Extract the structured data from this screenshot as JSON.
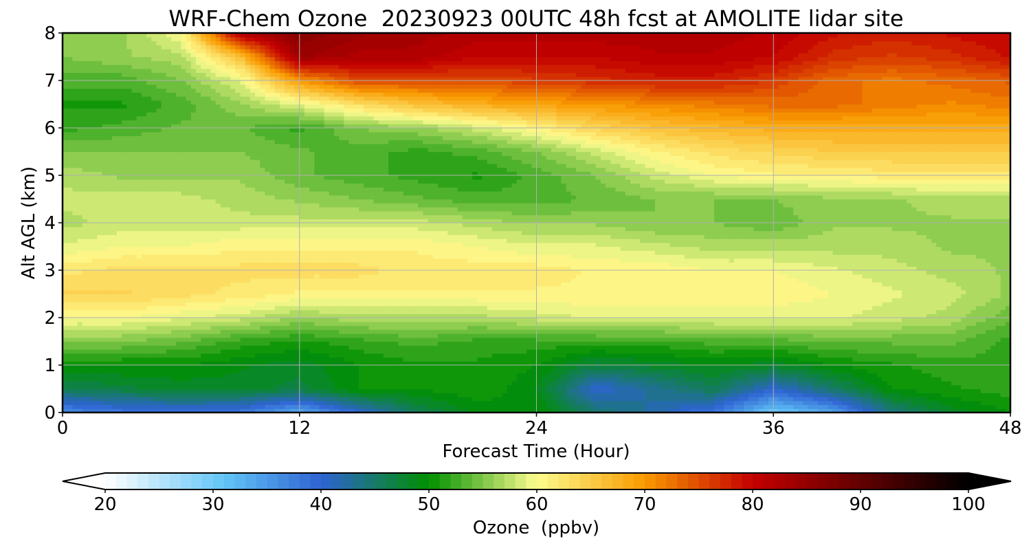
{
  "chart_data": {
    "type": "heatmap",
    "title": "WRF-Chem Ozone  20230923 00UTC 48h fcst at AMOLITE lidar site",
    "xlabel": "Forecast Time (Hour)",
    "ylabel": "Alt AGL (km)",
    "xlim": [
      0,
      48
    ],
    "ylim": [
      0,
      8
    ],
    "xticks": [
      0,
      12,
      24,
      36,
      48
    ],
    "yticks": [
      0,
      1,
      2,
      3,
      4,
      5,
      6,
      7,
      8
    ],
    "grid": true,
    "x": [
      0,
      3,
      6,
      9,
      12,
      15,
      18,
      21,
      24,
      27,
      30,
      33,
      36,
      39,
      42,
      45,
      48
    ],
    "y": [
      0.0,
      0.5,
      1.0,
      1.5,
      2.0,
      2.5,
      3.0,
      3.5,
      4.0,
      4.5,
      5.0,
      5.5,
      6.0,
      6.5,
      7.0,
      7.5,
      8.0
    ],
    "z": [
      [
        36,
        38,
        39,
        38,
        33,
        40,
        46,
        49,
        50,
        45,
        42,
        38,
        30,
        34,
        44,
        48,
        50
      ],
      [
        46,
        47,
        48,
        48,
        47,
        50,
        50,
        51,
        49,
        40,
        43,
        46,
        40,
        45,
        50,
        51,
        52
      ],
      [
        50,
        50,
        50,
        49,
        48,
        50,
        51,
        51,
        50,
        47,
        48,
        49,
        48,
        50,
        51,
        52,
        52
      ],
      [
        55,
        55,
        54,
        52,
        51,
        52,
        53,
        52,
        52,
        52,
        52,
        53,
        53,
        54,
        54,
        54,
        52
      ],
      [
        60,
        60,
        59,
        58,
        56,
        57,
        57,
        57,
        58,
        59,
        59,
        59,
        59,
        59,
        58,
        57,
        54
      ],
      [
        64,
        64,
        63,
        62,
        61,
        61,
        61,
        61,
        61,
        61,
        61,
        61,
        61,
        60,
        59,
        58,
        56
      ],
      [
        62,
        63,
        63,
        63,
        63,
        63,
        62,
        62,
        62,
        61,
        61,
        60,
        60,
        59,
        58,
        57,
        56
      ],
      [
        59,
        60,
        60,
        61,
        61,
        61,
        61,
        60,
        59,
        59,
        58,
        57,
        57,
        57,
        57,
        56,
        56
      ],
      [
        57,
        58,
        58,
        58,
        58,
        58,
        58,
        57,
        56,
        56,
        55,
        55,
        54,
        56,
        56,
        56,
        56
      ],
      [
        58,
        58,
        58,
        57,
        56,
        55,
        54,
        53,
        53,
        54,
        55,
        55,
        55,
        56,
        56,
        57,
        57
      ],
      [
        57,
        56,
        56,
        56,
        54,
        53,
        52,
        51,
        53,
        55,
        58,
        60,
        61,
        61,
        62,
        62,
        62
      ],
      [
        55,
        55,
        55,
        55,
        54,
        53,
        52,
        53,
        55,
        58,
        61,
        63,
        64,
        65,
        65,
        65,
        65
      ],
      [
        52,
        53,
        54,
        54,
        52,
        55,
        56,
        58,
        61,
        64,
        66,
        67,
        68,
        68,
        68,
        68,
        68
      ],
      [
        51,
        51,
        53,
        56,
        59,
        63,
        66,
        68,
        69,
        70,
        71,
        72,
        73,
        73,
        72,
        71,
        72
      ],
      [
        53,
        53,
        55,
        59,
        70,
        75,
        75,
        75,
        76,
        77,
        78,
        78,
        76,
        73,
        72,
        73,
        74
      ],
      [
        55,
        56,
        57,
        66,
        84,
        82,
        82,
        80,
        80,
        80,
        81,
        81,
        80,
        77,
        76,
        77,
        79
      ],
      [
        56,
        56,
        60,
        82,
        86,
        84,
        83,
        82,
        82,
        82,
        82,
        82,
        81,
        79,
        78,
        79,
        80
      ]
    ],
    "colorbar": {
      "label": "Ozone  (ppbv)",
      "min": 20,
      "max": 100,
      "ticks": [
        20,
        30,
        40,
        50,
        60,
        70,
        80,
        90,
        100
      ],
      "extend": "both",
      "colors": [
        "#ffffff",
        "#63c5f7",
        "#2e63d2",
        "#009000",
        "#fdfc8f",
        "#f99a00",
        "#c40000",
        "#000000"
      ],
      "color_stops": [
        20,
        31,
        40,
        50,
        60,
        70,
        80,
        100
      ]
    }
  }
}
